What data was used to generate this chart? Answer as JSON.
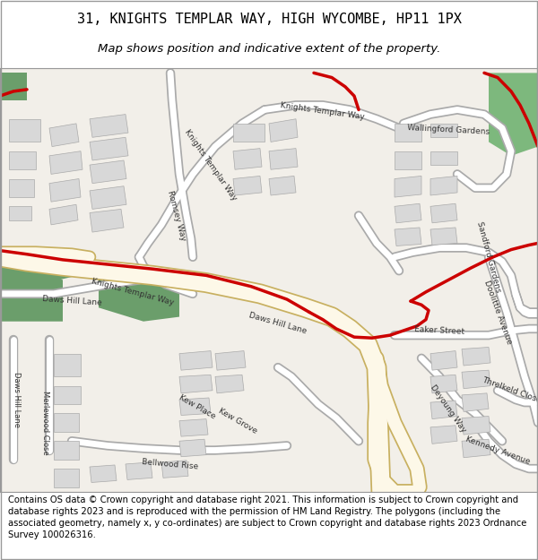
{
  "title_line1": "31, KNIGHTS TEMPLAR WAY, HIGH WYCOMBE, HP11 1PX",
  "title_line2": "Map shows position and indicative extent of the property.",
  "footer_text": "Contains OS data © Crown copyright and database right 2021. This information is subject to Crown copyright and database rights 2023 and is reproduced with the permission of HM Land Registry. The polygons (including the associated geometry, namely x, y co-ordinates) are subject to Crown copyright and database rights 2023 Ordnance Survey 100026316.",
  "fig_bg_color": "#ffffff",
  "map_bg_color": "#f2efe9",
  "road_fill": "#fdf8e8",
  "road_edge": "#c8b060",
  "road_white_fill": "#ffffff",
  "road_white_edge": "#aaaaaa",
  "green_color": "#6b9e6b",
  "green_color2": "#7db87d",
  "building_fill": "#d8d8d8",
  "building_edge": "#aaaaaa",
  "red_color": "#cc0000",
  "title_fontsize": 11,
  "subtitle_fontsize": 9.5,
  "footer_fontsize": 7.2,
  "figsize": [
    6.0,
    6.25
  ],
  "dpi": 100
}
